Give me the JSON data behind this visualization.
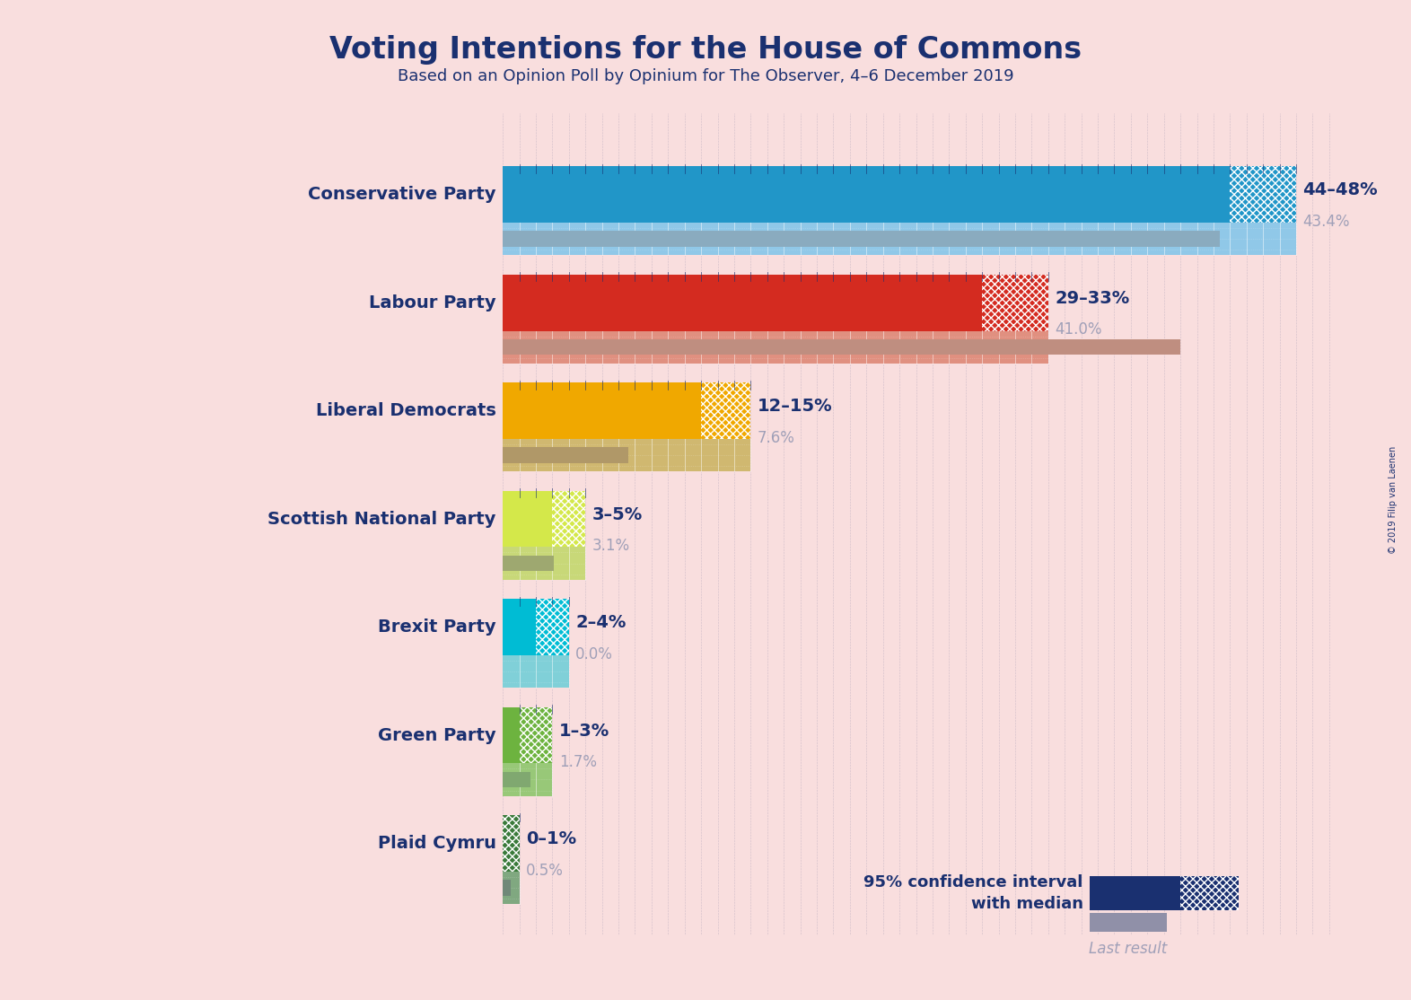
{
  "title": "Voting Intentions for the House of Commons",
  "subtitle": "Based on an Opinion Poll by Opinium for The Observer, 4–6 December 2019",
  "copyright": "© 2019 Filip van Laenen",
  "background_color": "#f9dede",
  "parties": [
    "Conservative Party",
    "Labour Party",
    "Liberal Democrats",
    "Scottish National Party",
    "Brexit Party",
    "Green Party",
    "Plaid Cymru"
  ],
  "ci_low": [
    44,
    29,
    12,
    3,
    2,
    1,
    0
  ],
  "ci_high": [
    48,
    33,
    15,
    5,
    4,
    3,
    1
  ],
  "last_result": [
    43.4,
    41.0,
    7.6,
    3.1,
    0.0,
    1.7,
    0.5
  ],
  "range_labels": [
    "44–48%",
    "29–33%",
    "12–15%",
    "3–5%",
    "2–4%",
    "1–3%",
    "0–1%"
  ],
  "last_labels": [
    "43.4%",
    "41.0%",
    "7.6%",
    "3.1%",
    "0.0%",
    "1.7%",
    "0.5%"
  ],
  "bar_colors": [
    "#2196c8",
    "#d42b20",
    "#f0a800",
    "#d4e84a",
    "#00bcd4",
    "#6db33f",
    "#3a7a3a"
  ],
  "bar_colors_light": [
    "#90c8e8",
    "#e09080",
    "#d0b870",
    "#c8d878",
    "#80d0d8",
    "#98c878",
    "#80a880"
  ],
  "last_bar_colors": [
    "#8aabbf",
    "#bf8e80",
    "#b09868",
    "#9ea870",
    "#70aaaa",
    "#80a870",
    "#708878"
  ],
  "label_color": "#1a3070",
  "last_label_color": "#a0a0b8",
  "max_val": 50,
  "legend_solid_color": "#1a3070",
  "legend_gray_color": "#9090a8"
}
